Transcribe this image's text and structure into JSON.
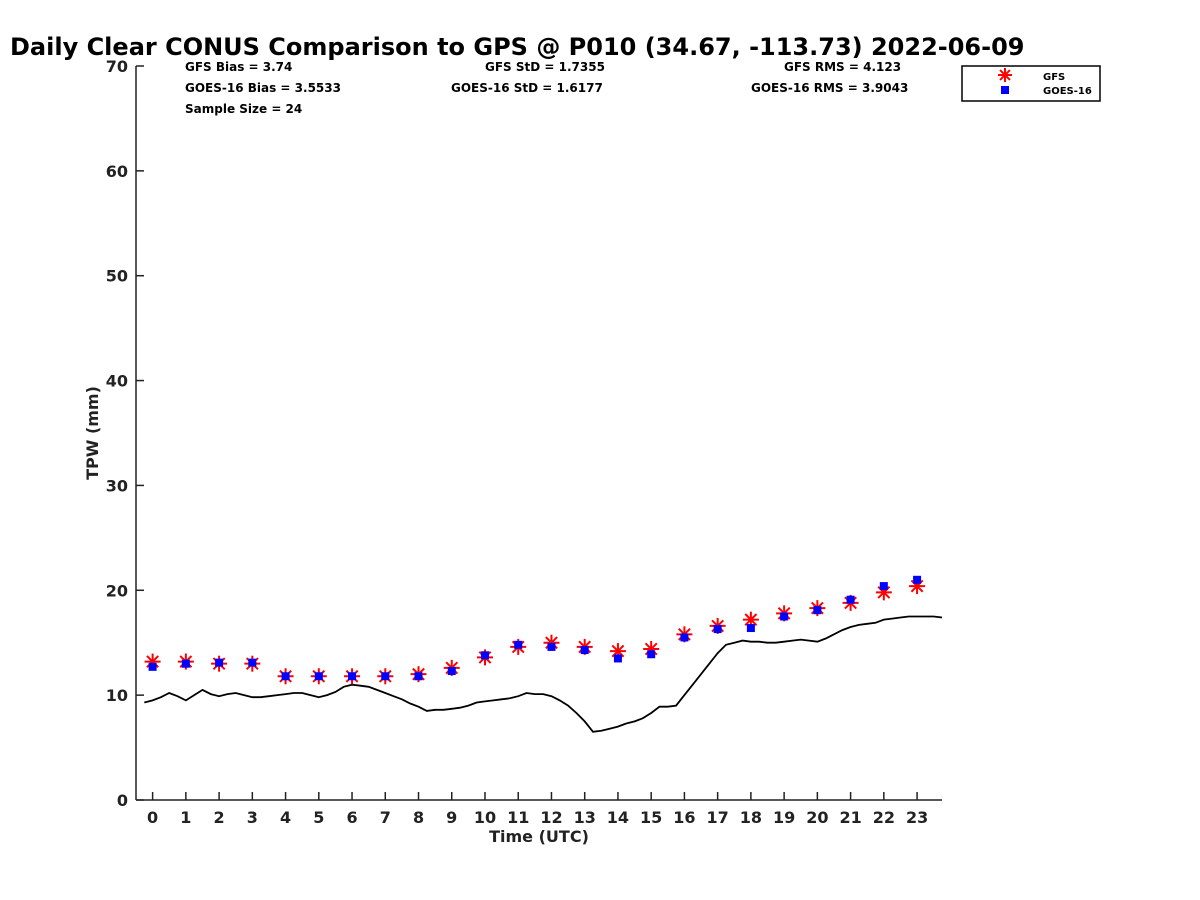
{
  "chart_data": {
    "type": "scatter",
    "title": "Daily Clear CONUS Comparison to GPS @ P010 (34.67, -113.73) 2022-06-09",
    "xlabel": "Time (UTC)",
    "ylabel": "TPW (mm)",
    "xlim": [
      -0.5,
      23.75
    ],
    "ylim": [
      0,
      70
    ],
    "x_ticks": [
      0,
      1,
      2,
      3,
      4,
      5,
      6,
      7,
      8,
      9,
      10,
      11,
      12,
      13,
      14,
      15,
      16,
      17,
      18,
      19,
      20,
      21,
      22,
      23
    ],
    "y_ticks": [
      0,
      10,
      20,
      30,
      40,
      50,
      60,
      70
    ],
    "grid": false,
    "legend_position": "top-right",
    "stats": [
      {
        "text": "GFS Bias = 3.74"
      },
      {
        "text": "GOES-16 Bias = 3.5533"
      },
      {
        "text": "Sample Size = 24"
      },
      {
        "text": "GFS StD = 1.7355"
      },
      {
        "text": "GOES-16 StD = 1.6177"
      },
      {
        "text": "GFS RMS = 4.123"
      },
      {
        "text": "GOES-16 RMS = 3.9043"
      }
    ],
    "series": [
      {
        "name": "GFS",
        "marker": "asterisk",
        "color": "#ff0000",
        "x": [
          0,
          1,
          2,
          3,
          4,
          5,
          6,
          7,
          8,
          9,
          10,
          11,
          12,
          13,
          14,
          15,
          16,
          17,
          18,
          19,
          20,
          21,
          22,
          23
        ],
        "y": [
          13.2,
          13.2,
          13.0,
          13.0,
          11.8,
          11.8,
          11.8,
          11.8,
          12.0,
          12.6,
          13.6,
          14.6,
          15.0,
          14.6,
          14.2,
          14.4,
          15.8,
          16.6,
          17.2,
          17.8,
          18.3,
          18.8,
          19.8,
          20.4
        ]
      },
      {
        "name": "GOES-16",
        "marker": "square",
        "color": "#0000ff",
        "x": [
          0,
          1,
          2,
          3,
          4,
          5,
          6,
          7,
          8,
          9,
          10,
          11,
          12,
          13,
          14,
          15,
          16,
          17,
          18,
          19,
          20,
          21,
          22,
          23
        ],
        "y": [
          12.7,
          13.0,
          13.1,
          13.1,
          11.8,
          11.8,
          11.8,
          11.8,
          11.8,
          12.3,
          13.8,
          14.8,
          14.6,
          14.3,
          13.5,
          13.9,
          15.5,
          16.3,
          16.4,
          17.5,
          18.1,
          19.1,
          20.4,
          21.0
        ]
      },
      {
        "name": "GPS",
        "marker": "line",
        "color": "#000000",
        "x": [
          -0.25,
          0.0,
          0.25,
          0.5,
          0.75,
          1.0,
          1.25,
          1.5,
          1.75,
          2.0,
          2.25,
          2.5,
          2.75,
          3.0,
          3.25,
          3.5,
          3.75,
          4.0,
          4.25,
          4.5,
          4.75,
          5.0,
          5.25,
          5.5,
          5.75,
          6.0,
          6.25,
          6.5,
          6.75,
          7.0,
          7.25,
          7.5,
          7.75,
          8.0,
          8.25,
          8.5,
          8.75,
          9.0,
          9.25,
          9.5,
          9.75,
          10.0,
          10.25,
          10.5,
          10.75,
          11.0,
          11.25,
          11.5,
          11.75,
          12.0,
          12.25,
          12.5,
          12.75,
          13.0,
          13.25,
          13.5,
          13.75,
          14.0,
          14.25,
          14.5,
          14.75,
          15.0,
          15.25,
          15.5,
          15.75,
          16.0,
          16.25,
          16.5,
          16.75,
          17.0,
          17.25,
          17.5,
          17.75,
          18.0,
          18.25,
          18.5,
          18.75,
          19.0,
          19.25,
          19.5,
          19.75,
          20.0,
          20.25,
          20.5,
          20.75,
          21.0,
          21.25,
          21.5,
          21.75,
          22.0,
          22.25,
          22.5,
          22.75,
          23.0,
          23.25,
          23.5,
          23.75
        ],
        "y": [
          9.3,
          9.5,
          9.8,
          10.2,
          9.9,
          9.5,
          10.0,
          10.5,
          10.1,
          9.9,
          10.1,
          10.2,
          10.0,
          9.8,
          9.8,
          9.9,
          10.0,
          10.1,
          10.2,
          10.2,
          10.0,
          9.8,
          10.0,
          10.3,
          10.8,
          11.0,
          10.9,
          10.8,
          10.5,
          10.2,
          9.9,
          9.6,
          9.2,
          8.9,
          8.5,
          8.6,
          8.6,
          8.7,
          8.8,
          9.0,
          9.3,
          9.4,
          9.5,
          9.6,
          9.7,
          9.9,
          10.2,
          10.1,
          10.1,
          9.9,
          9.5,
          9.0,
          8.3,
          7.5,
          6.5,
          6.6,
          6.8,
          7.0,
          7.3,
          7.5,
          7.8,
          8.3,
          8.9,
          8.9,
          9.0,
          10.0,
          11.0,
          12.0,
          13.0,
          14.0,
          14.8,
          15.0,
          15.2,
          15.1,
          15.1,
          15.0,
          15.0,
          15.1,
          15.2,
          15.3,
          15.2,
          15.1,
          15.4,
          15.8,
          16.2,
          16.5,
          16.7,
          16.8,
          16.9,
          17.2,
          17.3,
          17.4,
          17.5,
          17.5,
          17.5,
          17.5,
          17.4
        ]
      }
    ]
  }
}
